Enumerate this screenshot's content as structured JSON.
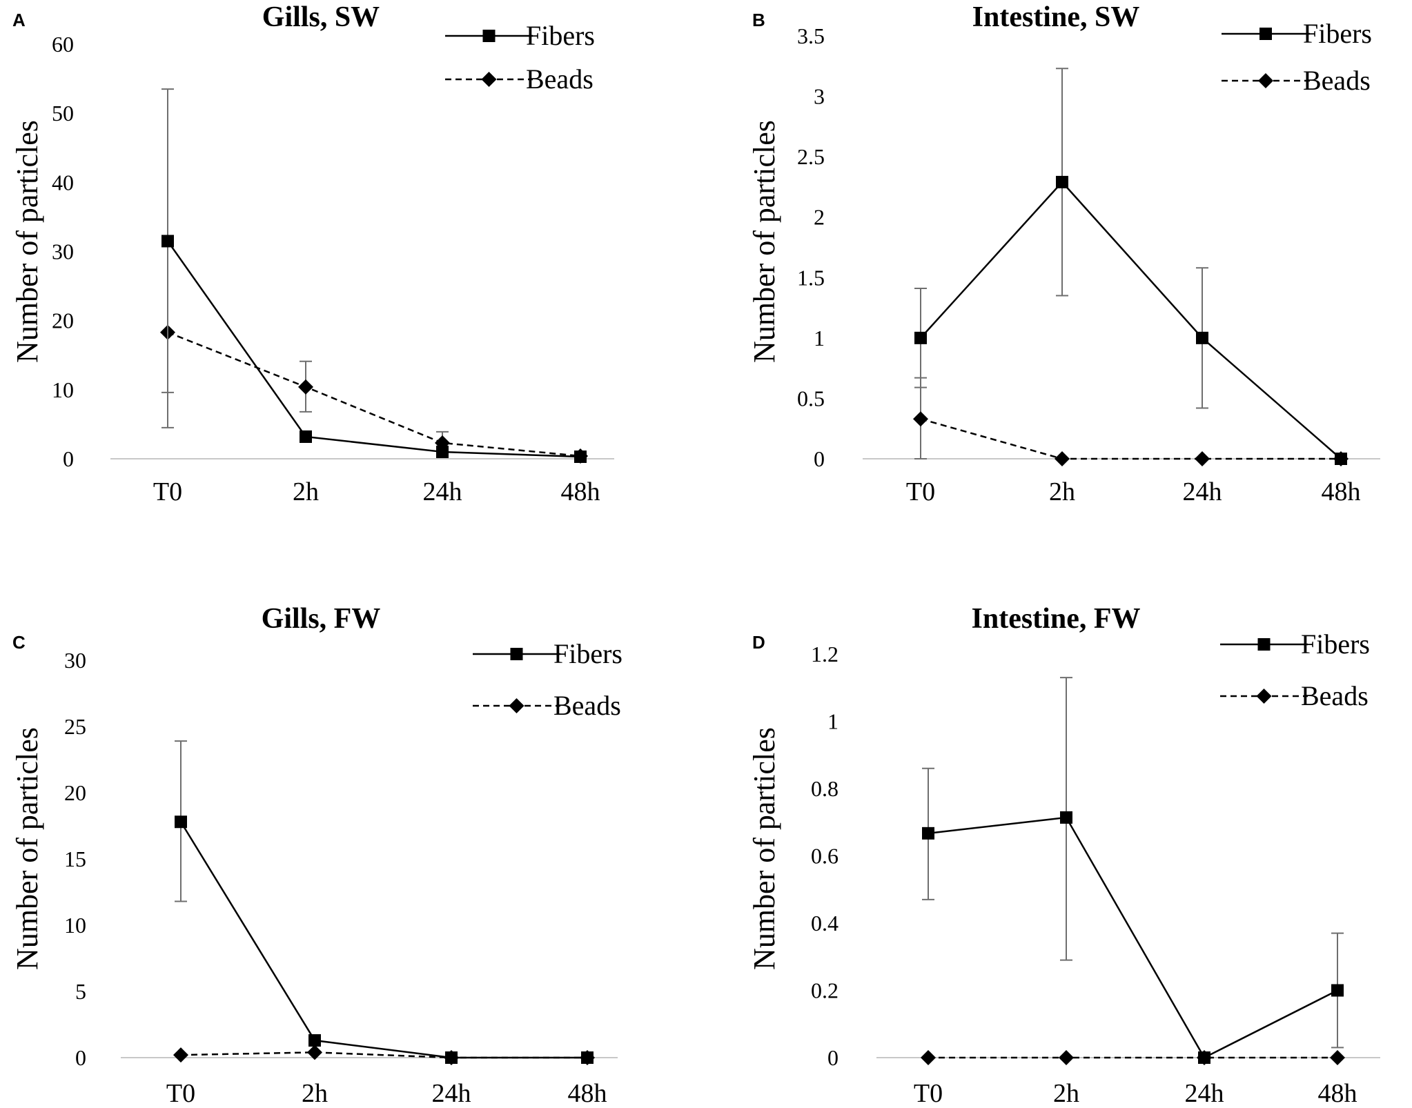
{
  "chart_data": [
    {
      "panel": "A",
      "type": "line",
      "title": "Gills, SW",
      "ylabel": "Number of particles",
      "xlabel": "",
      "categories": [
        "T0",
        "2h",
        "24h",
        "48h"
      ],
      "ylim": [
        0,
        60
      ],
      "yticks": [
        0,
        10,
        20,
        30,
        40,
        50,
        60
      ],
      "ytick_labels": [
        "0",
        "10",
        "20",
        "30",
        "40",
        "50",
        "60"
      ],
      "legend": "top-right",
      "series": [
        {
          "name": "Fibers",
          "marker": "square",
          "dash": "solid",
          "values": [
            31.5,
            3.2,
            1.0,
            0.3
          ],
          "err_low": [
            4.5,
            2.4,
            0.5,
            0.1
          ],
          "err_high": [
            53.5,
            4.0,
            1.6,
            0.5
          ]
        },
        {
          "name": "Beads",
          "marker": "diamond",
          "dash": "dashed",
          "values": [
            18.3,
            10.4,
            2.3,
            0.4
          ],
          "err_low": [
            9.6,
            6.8,
            0.9,
            0.1
          ],
          "err_high": [
            32.2,
            14.1,
            3.9,
            0.7
          ]
        }
      ]
    },
    {
      "panel": "B",
      "type": "line",
      "title": "Intestine, SW",
      "ylabel": "Number of particles",
      "xlabel": "",
      "categories": [
        "T0",
        "2h",
        "24h",
        "48h"
      ],
      "ylim": [
        0,
        3.5
      ],
      "yticks": [
        0,
        0.5,
        1,
        1.5,
        2,
        2.5,
        3,
        3.5
      ],
      "ytick_labels": [
        "0",
        "0.5",
        "1",
        "1.5",
        "2",
        "2.5",
        "3",
        "3.5"
      ],
      "legend": "top-right",
      "series": [
        {
          "name": "Fibers",
          "marker": "square",
          "dash": "solid",
          "values": [
            1.0,
            2.29,
            1.0,
            0.0
          ],
          "err_low": [
            0.59,
            1.35,
            0.42,
            0.0
          ],
          "err_high": [
            1.41,
            3.23,
            1.58,
            0.0
          ]
        },
        {
          "name": "Beads",
          "marker": "diamond",
          "dash": "dashed",
          "values": [
            0.33,
            0.0,
            0.0,
            0.0
          ],
          "err_low": [
            0.0,
            0.0,
            0.0,
            0.0
          ],
          "err_high": [
            0.67,
            0.0,
            0.0,
            0.0
          ]
        }
      ]
    },
    {
      "panel": "C",
      "type": "line",
      "title": "Gills, FW",
      "ylabel": "Number of particles",
      "xlabel": "",
      "categories": [
        "T0",
        "2h",
        "24h",
        "48h"
      ],
      "ylim": [
        0,
        30
      ],
      "yticks": [
        0,
        5,
        10,
        15,
        20,
        25,
        30
      ],
      "ytick_labels": [
        "0",
        "5",
        "10",
        "15",
        "20",
        "25",
        "30"
      ],
      "legend": "top-right",
      "series": [
        {
          "name": "Fibers",
          "marker": "square",
          "dash": "solid",
          "values": [
            17.8,
            1.3,
            0.0,
            0.0
          ],
          "err_low": [
            11.8,
            1.3,
            0.0,
            0.0
          ],
          "err_high": [
            23.9,
            1.3,
            0.0,
            0.0
          ]
        },
        {
          "name": "Beads",
          "marker": "diamond",
          "dash": "dashed",
          "values": [
            0.2,
            0.4,
            0.0,
            0.0
          ],
          "err_low": [
            0.2,
            0.4,
            0.0,
            0.0
          ],
          "err_high": [
            0.2,
            0.4,
            0.0,
            0.0
          ]
        }
      ]
    },
    {
      "panel": "D",
      "type": "line",
      "title": "Intestine, FW",
      "ylabel": "Number of particles",
      "xlabel": "",
      "categories": [
        "T0",
        "2h",
        "24h",
        "48h"
      ],
      "ylim": [
        0,
        1.2
      ],
      "yticks": [
        0,
        0.2,
        0.4,
        0.6,
        0.8,
        1.0,
        1.2
      ],
      "ytick_labels": [
        "0",
        "0.2",
        "0.4",
        "0.6",
        "0.8",
        "1",
        "1.2"
      ],
      "legend": "top-right",
      "series": [
        {
          "name": "Fibers",
          "marker": "square",
          "dash": "solid",
          "values": [
            0.667,
            0.714,
            0.0,
            0.2
          ],
          "err_low": [
            0.47,
            0.29,
            0.0,
            0.03
          ],
          "err_high": [
            0.86,
            1.13,
            0.0,
            0.37
          ]
        },
        {
          "name": "Beads",
          "marker": "diamond",
          "dash": "dashed",
          "values": [
            0.0,
            0.0,
            0.0,
            0.0
          ],
          "err_low": [
            0.0,
            0.0,
            0.0,
            0.0
          ],
          "err_high": [
            0.0,
            0.0,
            0.0,
            0.0
          ]
        }
      ]
    }
  ]
}
